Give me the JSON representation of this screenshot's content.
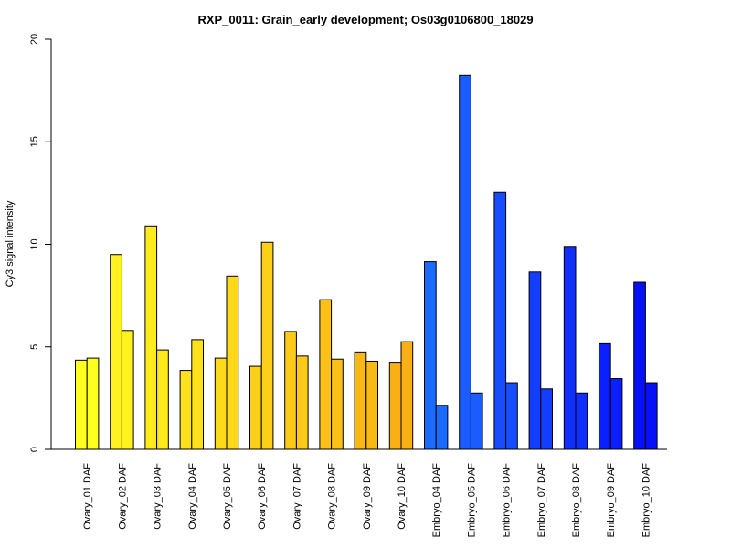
{
  "chart_data": {
    "type": "bar",
    "title": "RXP_0011: Grain_early development; Os03g0106800_18029",
    "ylabel": "Cy3 signal intensity",
    "xlabel": "",
    "ylim": [
      0,
      20
    ],
    "yticks": [
      0,
      5,
      10,
      15,
      20
    ],
    "grid": false,
    "legend": "none",
    "categories": [
      "Ovary_01 DAF",
      "Ovary_02 DAF",
      "Ovary_03 DAF",
      "Ovary_04 DAF",
      "Ovary_05 DAF",
      "Ovary_06 DAF",
      "Ovary_07 DAF",
      "Ovary_08 DAF",
      "Ovary_09 DAF",
      "Ovary_10 DAF",
      "Embryo_04 DAF",
      "Embryo_05 DAF",
      "Embryo_06 DAF",
      "Embryo_07 DAF",
      "Embryo_08 DAF",
      "Embryo_09 DAF",
      "Embryo_10 DAF"
    ],
    "series": [
      {
        "values": [
          4.35,
          9.5,
          10.9,
          3.85,
          4.45,
          4.05,
          5.75,
          7.3,
          4.75,
          4.25,
          9.15,
          18.25,
          12.55,
          8.65,
          9.9,
          5.15,
          8.15
        ]
      },
      {
        "values": [
          4.45,
          5.8,
          4.85,
          5.35,
          8.45,
          10.1,
          4.55,
          4.4,
          4.3,
          5.25,
          2.15,
          2.75,
          3.25,
          2.95,
          2.75,
          3.45,
          3.25
        ]
      }
    ],
    "colors": [
      "#ffff1f",
      "#fff21e",
      "#ffea1c",
      "#fee01b",
      "#fdd91a",
      "#fcd019",
      "#fbc918",
      "#fac017",
      "#f9b816",
      "#f9b015",
      "#1b6bff",
      "#1a5cff",
      "#174dff",
      "#143eff",
      "#102fff",
      "#0c1fff",
      "#0810f7"
    ]
  }
}
